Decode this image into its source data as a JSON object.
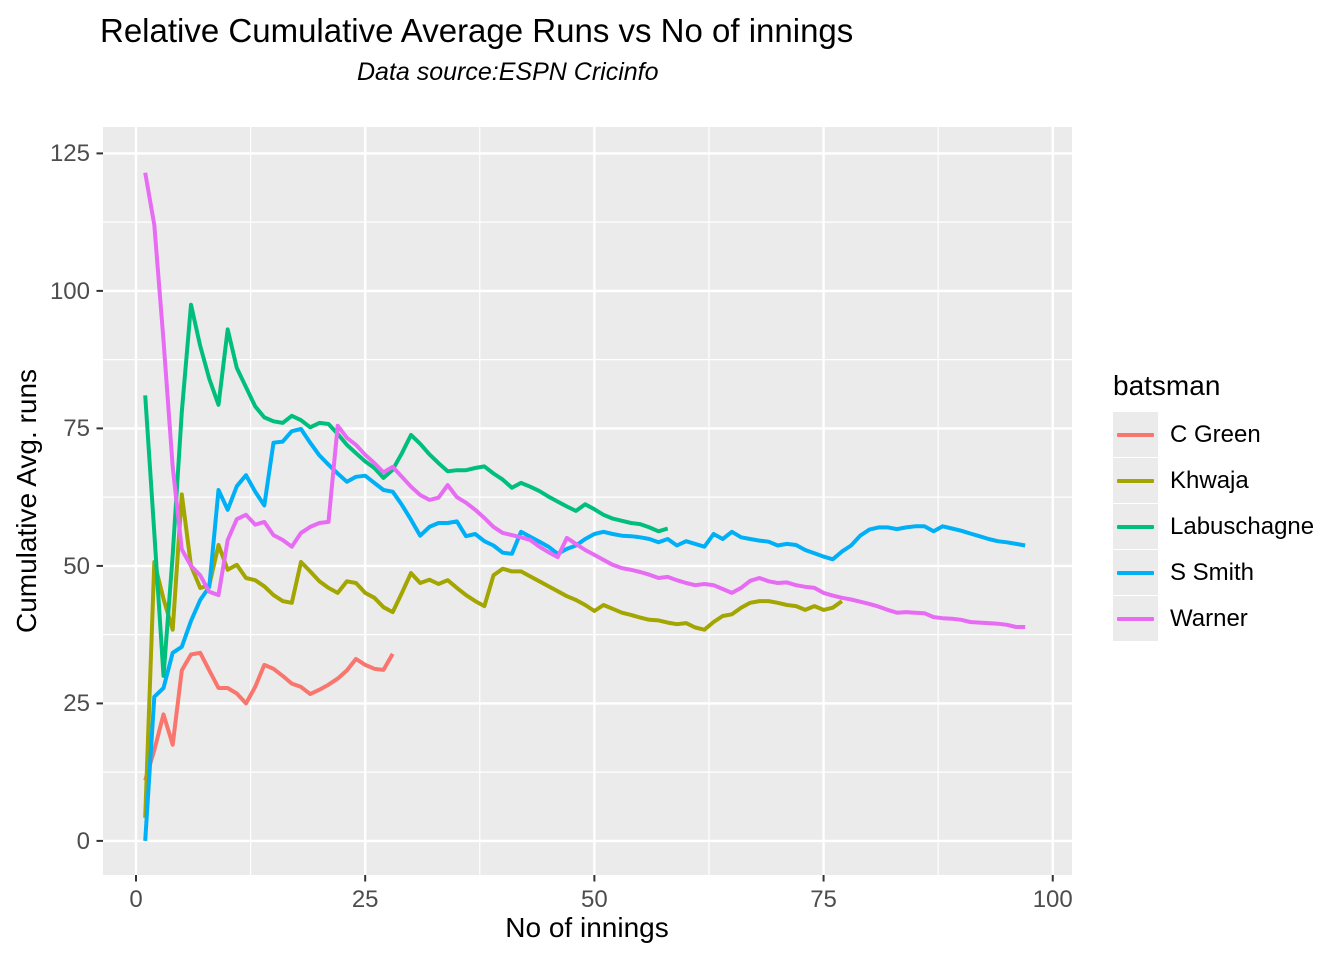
{
  "chart_data": {
    "type": "line",
    "title": "Relative Cumulative Average Runs vs No of innings",
    "subtitle": "Data source:ESPN Cricinfo",
    "xlabel": "No of innings",
    "ylabel": "Cumulative Avg. runs",
    "legend_title": "batsman",
    "legend_position": "right",
    "grid": true,
    "panel_bg": "#EBEBEB",
    "grid_color": "#FFFFFF",
    "tick_color": "#333333",
    "tick_label_color": "#4D4D4D",
    "x_domain": [
      -3.6,
      102.1
    ],
    "y_domain": [
      -6.2,
      129.8
    ],
    "x_ticks": [
      0,
      25,
      50,
      75,
      100
    ],
    "y_ticks": [
      0,
      25,
      50,
      75,
      100,
      125
    ],
    "x_minor": [
      12.5,
      37.5,
      62.5,
      87.5
    ],
    "y_minor": [
      12.5,
      37.5,
      62.5,
      87.5,
      112.5
    ],
    "series": [
      {
        "name": "C Green",
        "color": "#F8766D",
        "x_start": 1,
        "values": [
          11,
          16.5,
          23,
          17.5,
          31,
          33.9,
          34.2,
          31,
          27.8,
          27.8,
          26.8,
          25,
          28,
          32,
          31.3,
          30,
          28.6,
          28,
          26.7,
          27.5,
          28.4,
          29.5,
          31,
          33.1,
          32,
          31.3,
          31.1,
          34
        ]
      },
      {
        "name": "Khwaja",
        "color": "#A3A500",
        "x_start": 1,
        "values": [
          4.2,
          50.7,
          44,
          38.4,
          63,
          50,
          46,
          46.5,
          53.8,
          49.3,
          50.2,
          47.8,
          47.4,
          46.3,
          44.7,
          43.6,
          43.3,
          50.7,
          49,
          47.2,
          46,
          45.1,
          47.2,
          46.9,
          45.1,
          44.2,
          42.5,
          41.6,
          45.1,
          48.7,
          46.9,
          47.5,
          46.7,
          47.4,
          46,
          44.7,
          43.6,
          42.7,
          48.3,
          49.5,
          49,
          49,
          48.1,
          47.2,
          46.3,
          45.4,
          44.5,
          43.8,
          42.9,
          41.8,
          42.9,
          42.2,
          41.5,
          41.1,
          40.6,
          40.2,
          40.1,
          39.7,
          39.4,
          39.6,
          38.8,
          38.4,
          39.8,
          40.9,
          41.2,
          42.4,
          43.3,
          43.6,
          43.6,
          43.3,
          42.9,
          42.7,
          42,
          42.7,
          42,
          42.4,
          43.6
        ]
      },
      {
        "name": "Labuschagne",
        "color": "#00BF7D",
        "x_start": 1,
        "values": [
          81,
          56,
          30,
          52,
          78,
          97.5,
          90,
          84,
          79.3,
          93,
          86,
          82.5,
          79,
          77,
          76.3,
          76,
          77.3,
          76.5,
          75.2,
          76,
          75.8,
          74,
          72,
          70.5,
          69,
          67.8,
          66,
          67.5,
          70.5,
          73.8,
          72.2,
          70.3,
          68.7,
          67.2,
          67.4,
          67.4,
          67.8,
          68.1,
          66.8,
          65.7,
          64.2,
          65.1,
          64.4,
          63.6,
          62.6,
          61.7,
          60.8,
          60,
          61.2,
          60.3,
          59.3,
          58.6,
          58.2,
          57.8,
          57.6,
          57,
          56.3,
          56.8
        ]
      },
      {
        "name": "S Smith",
        "color": "#00B0F6",
        "x_start": 1,
        "values": [
          0,
          26.2,
          27.8,
          34.2,
          35.3,
          40,
          43.8,
          46.2,
          63.8,
          60.2,
          64.5,
          66.5,
          63.5,
          61,
          72.4,
          72.6,
          74.5,
          74.9,
          72.4,
          70.1,
          68.4,
          66.8,
          65.3,
          66.2,
          66.4,
          65.1,
          63.8,
          63.5,
          61.1,
          58.4,
          55.5,
          57.1,
          57.8,
          57.8,
          58.1,
          55.4,
          55.8,
          54.5,
          53.7,
          52.4,
          52.2,
          56.2,
          55.3,
          54.4,
          53.5,
          52.2,
          53.1,
          53.7,
          54.9,
          55.8,
          56.2,
          55.8,
          55.5,
          55.4,
          55.2,
          54.9,
          54.3,
          54.9,
          53.7,
          54.5,
          54,
          53.5,
          55.8,
          54.9,
          56.2,
          55.2,
          54.9,
          54.6,
          54.4,
          53.7,
          54,
          53.8,
          52.9,
          52.3,
          51.7,
          51.2,
          52.6,
          53.7,
          55.5,
          56.6,
          57,
          57,
          56.7,
          57,
          57.2,
          57.2,
          56.3,
          57.2,
          56.8,
          56.4,
          55.9,
          55.4,
          54.9,
          54.5,
          54.3,
          54,
          53.7
        ]
      },
      {
        "name": "Warner",
        "color": "#E76BF3",
        "x_start": 1,
        "values": [
          121.5,
          112,
          91,
          68,
          53,
          50,
          48.3,
          45.3,
          44.7,
          54.7,
          58.5,
          59.3,
          57.5,
          58,
          55.6,
          54.7,
          53.5,
          56,
          57.1,
          57.8,
          58,
          75.5,
          73.3,
          72,
          70.2,
          68.7,
          67,
          68,
          66.2,
          64.4,
          62.9,
          62,
          62.4,
          64.7,
          62.5,
          61.5,
          60.2,
          58.7,
          57.1,
          56,
          55.6,
          55.2,
          54.7,
          53.5,
          52.5,
          51.6,
          55.1,
          54,
          52.9,
          52,
          51.1,
          50.2,
          49.6,
          49.3,
          48.9,
          48.4,
          47.8,
          48,
          47.4,
          46.9,
          46.5,
          46.7,
          46.5,
          45.8,
          45.1,
          46,
          47.3,
          47.8,
          47.2,
          46.9,
          47,
          46.5,
          46.2,
          46,
          45.1,
          44.6,
          44.2,
          43.9,
          43.5,
          43.1,
          42.6,
          42,
          41.5,
          41.6,
          41.5,
          41.4,
          40.7,
          40.5,
          40.4,
          40.2,
          39.8,
          39.7,
          39.6,
          39.5,
          39.3,
          38.9,
          38.9
        ]
      }
    ]
  }
}
